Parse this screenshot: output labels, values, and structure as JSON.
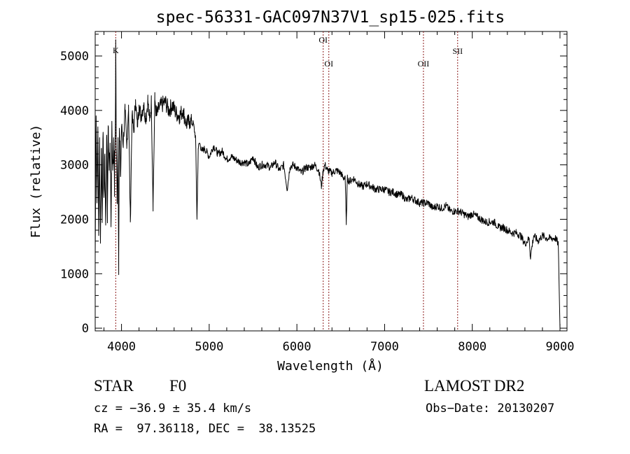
{
  "chart_data": {
    "type": "line",
    "title": "spec-56331-GAC097N37V1_sp15-025.fits",
    "xlabel": "Wavelength (Å)",
    "ylabel": "Flux (relative)",
    "xlim": [
      3700,
      9080
    ],
    "ylim": [
      -50,
      5450
    ],
    "x_ticks": [
      4000,
      5000,
      6000,
      7000,
      8000,
      9000
    ],
    "y_ticks": [
      0,
      1000,
      2000,
      3000,
      4000,
      5000
    ],
    "grid": false,
    "line_color": "#000000",
    "marker_color": "#8b1a1a",
    "spectral_lines": [
      {
        "name": "K",
        "wavelength": 3934
      },
      {
        "name": "OI",
        "wavelength": 6300
      },
      {
        "name": "OI",
        "wavelength": 6364
      },
      {
        "name": "OII",
        "wavelength": 7443
      },
      {
        "name": "SII",
        "wavelength": 7833
      }
    ],
    "series": [
      {
        "x": [
          3700,
          3710,
          3720,
          3730,
          3740,
          3750,
          3760,
          3770,
          3780,
          3790,
          3800,
          3810,
          3820,
          3830,
          3840,
          3850,
          3860,
          3870,
          3880,
          3890,
          3900,
          3910,
          3920,
          3930,
          3934,
          3940,
          3950,
          3960,
          3968,
          3975,
          3990,
          4000,
          4020,
          4040,
          4060,
          4080,
          4101,
          4120,
          4140,
          4160,
          4180,
          4200,
          4220,
          4250,
          4280,
          4300,
          4320,
          4340,
          4360,
          4380,
          4400,
          4430,
          4460,
          4500,
          4540,
          4580,
          4620,
          4660,
          4700,
          4740,
          4780,
          4820,
          4845,
          4861,
          4875,
          4890,
          4920,
          4950,
          5000,
          5050,
          5100,
          5150,
          5200,
          5250,
          5300,
          5350,
          5400,
          5450,
          5500,
          5550,
          5600,
          5650,
          5700,
          5750,
          5800,
          5850,
          5890,
          5920,
          5950,
          6000,
          6050,
          6100,
          6150,
          6200,
          6250,
          6280,
          6300,
          6320,
          6350,
          6400,
          6450,
          6500,
          6530,
          6550,
          6563,
          6575,
          6600,
          6650,
          6700,
          6750,
          6800,
          6850,
          6900,
          6950,
          7000,
          7050,
          7100,
          7150,
          7200,
          7250,
          7300,
          7350,
          7400,
          7450,
          7500,
          7550,
          7600,
          7650,
          7700,
          7750,
          7800,
          7850,
          7900,
          7950,
          8000,
          8050,
          8100,
          8150,
          8200,
          8250,
          8300,
          8350,
          8400,
          8450,
          8500,
          8550,
          8600,
          8650,
          8662,
          8700,
          8750,
          8800,
          8850,
          8900,
          8950,
          8980,
          9000
        ],
        "values": [
          1300,
          3900,
          2300,
          3700,
          1700,
          3500,
          1600,
          3300,
          2000,
          3600,
          2400,
          3200,
          1900,
          3500,
          2200,
          3700,
          2900,
          3400,
          1900,
          3800,
          2900,
          3500,
          2600,
          3800,
          5300,
          3300,
          2300,
          3500,
          1300,
          3600,
          2800,
          3700,
          3400,
          4000,
          3300,
          4100,
          1950,
          3900,
          3600,
          4200,
          3700,
          4100,
          3900,
          4100,
          3850,
          4200,
          3800,
          4150,
          2300,
          4200,
          3900,
          4050,
          4100,
          4150,
          4000,
          4100,
          3950,
          3900,
          4000,
          3750,
          3800,
          3750,
          3500,
          2000,
          3300,
          3400,
          3250,
          3300,
          3150,
          3350,
          3200,
          3250,
          3100,
          3150,
          3100,
          3050,
          3050,
          3000,
          3150,
          2950,
          3000,
          3000,
          2950,
          3050,
          2900,
          3000,
          2550,
          2950,
          3000,
          2950,
          2850,
          2950,
          2950,
          3000,
          2900,
          2600,
          2900,
          3000,
          2900,
          2850,
          2900,
          2850,
          2750,
          2800,
          1900,
          2750,
          2700,
          2750,
          2650,
          2600,
          2650,
          2600,
          2550,
          2550,
          2550,
          2500,
          2500,
          2450,
          2450,
          2350,
          2400,
          2350,
          2300,
          2300,
          2300,
          2200,
          2250,
          2200,
          2250,
          2150,
          2150,
          2150,
          2100,
          2050,
          2100,
          2050,
          2000,
          1950,
          1950,
          1950,
          1850,
          1850,
          1800,
          1750,
          1750,
          1700,
          1550,
          1650,
          1300,
          1700,
          1600,
          1700,
          1650,
          1650,
          1650,
          1550,
          0
        ]
      }
    ]
  },
  "info": {
    "object_type": "STAR",
    "subclass": "F0",
    "survey": "LAMOST DR2",
    "cz": "cz = −36.9 ± 35.4 km/s",
    "obs_date": "Obs−Date: 20130207",
    "coords": "RA =  97.36118, DEC =  38.13525"
  }
}
